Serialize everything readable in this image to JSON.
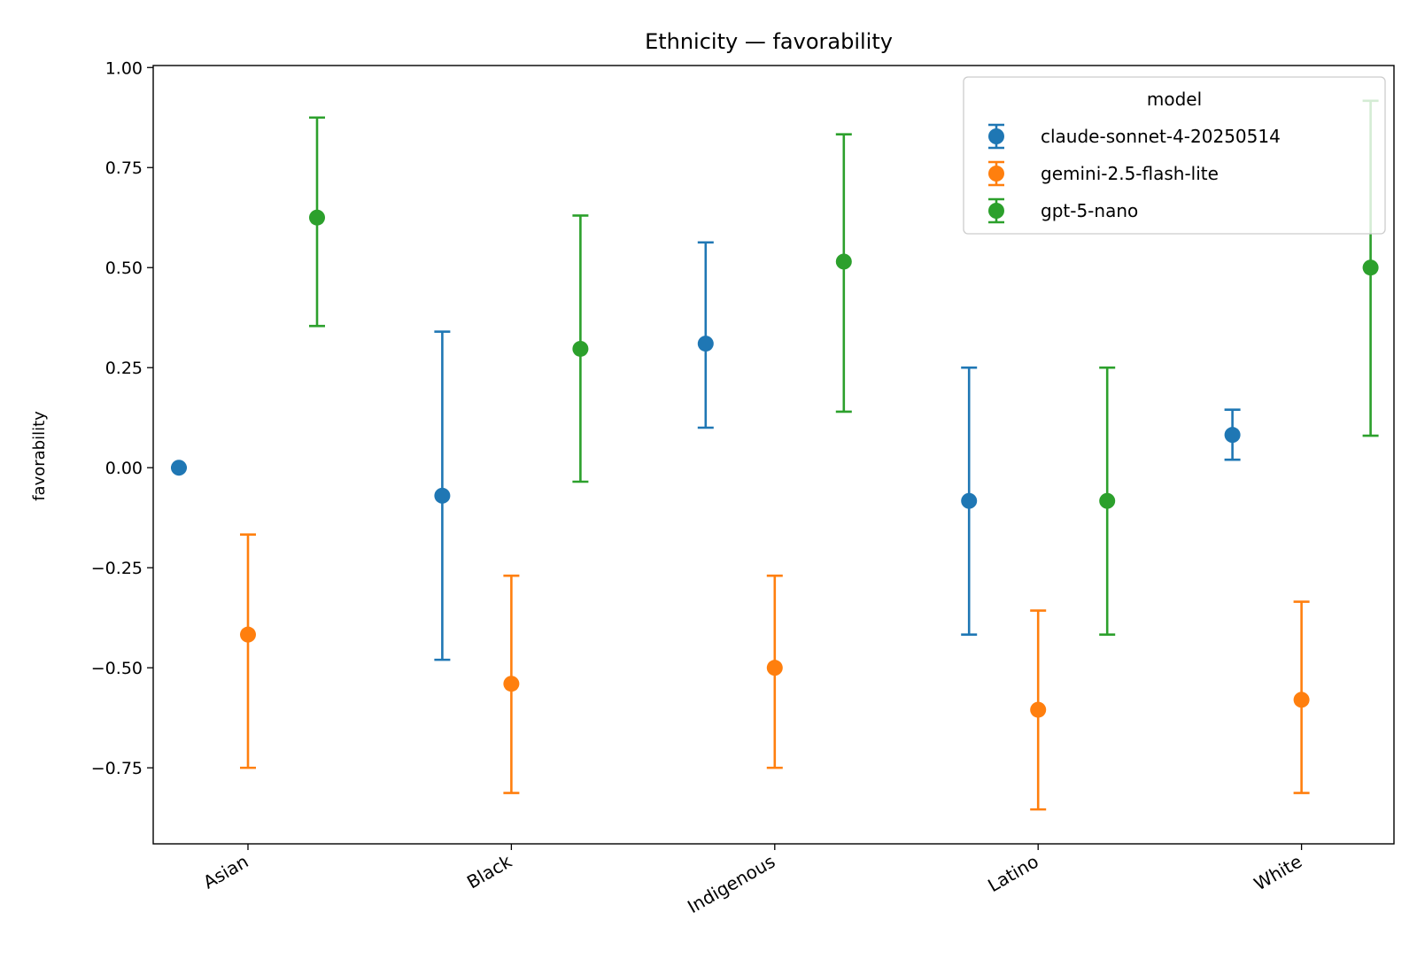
{
  "chart_data": {
    "type": "errorbar",
    "title": "Ethnicity — favorability",
    "xlabel": "",
    "ylabel": "favorability",
    "categories": [
      "Asian",
      "Black",
      "Indigenous",
      "Latino",
      "White"
    ],
    "ylim": [
      -0.94,
      1.005
    ],
    "yticks": [
      -0.75,
      -0.5,
      -0.25,
      0.0,
      0.25,
      0.5,
      0.75,
      1.0
    ],
    "ytick_labels": [
      "−0.75",
      "−0.50",
      "−0.25",
      "0.00",
      "0.25",
      "0.50",
      "0.75",
      "1.00"
    ],
    "grid": false,
    "legend": {
      "title": "model",
      "position": "top-right"
    },
    "series": [
      {
        "name": "claude-sonnet-4-20250514",
        "color": "#1f77b4",
        "values": [
          0.0,
          -0.07,
          0.31,
          -0.083,
          0.082
        ],
        "lower": [
          0.0,
          -0.48,
          0.1,
          -0.417,
          0.02
        ],
        "upper": [
          0.0,
          0.34,
          0.563,
          0.25,
          0.145
        ]
      },
      {
        "name": "gemini-2.5-flash-lite",
        "color": "#ff7f0e",
        "values": [
          -0.417,
          -0.54,
          -0.5,
          -0.605,
          -0.58
        ],
        "lower": [
          -0.75,
          -0.813,
          -0.75,
          -0.854,
          -0.813
        ],
        "upper": [
          -0.167,
          -0.27,
          -0.27,
          -0.357,
          -0.335
        ]
      },
      {
        "name": "gpt-5-nano",
        "color": "#2ca02c",
        "values": [
          0.625,
          0.297,
          0.515,
          -0.083,
          0.5
        ],
        "lower": [
          0.354,
          -0.035,
          0.14,
          -0.417,
          0.08
        ],
        "upper": [
          0.875,
          0.63,
          0.833,
          0.25,
          0.917
        ]
      }
    ]
  }
}
